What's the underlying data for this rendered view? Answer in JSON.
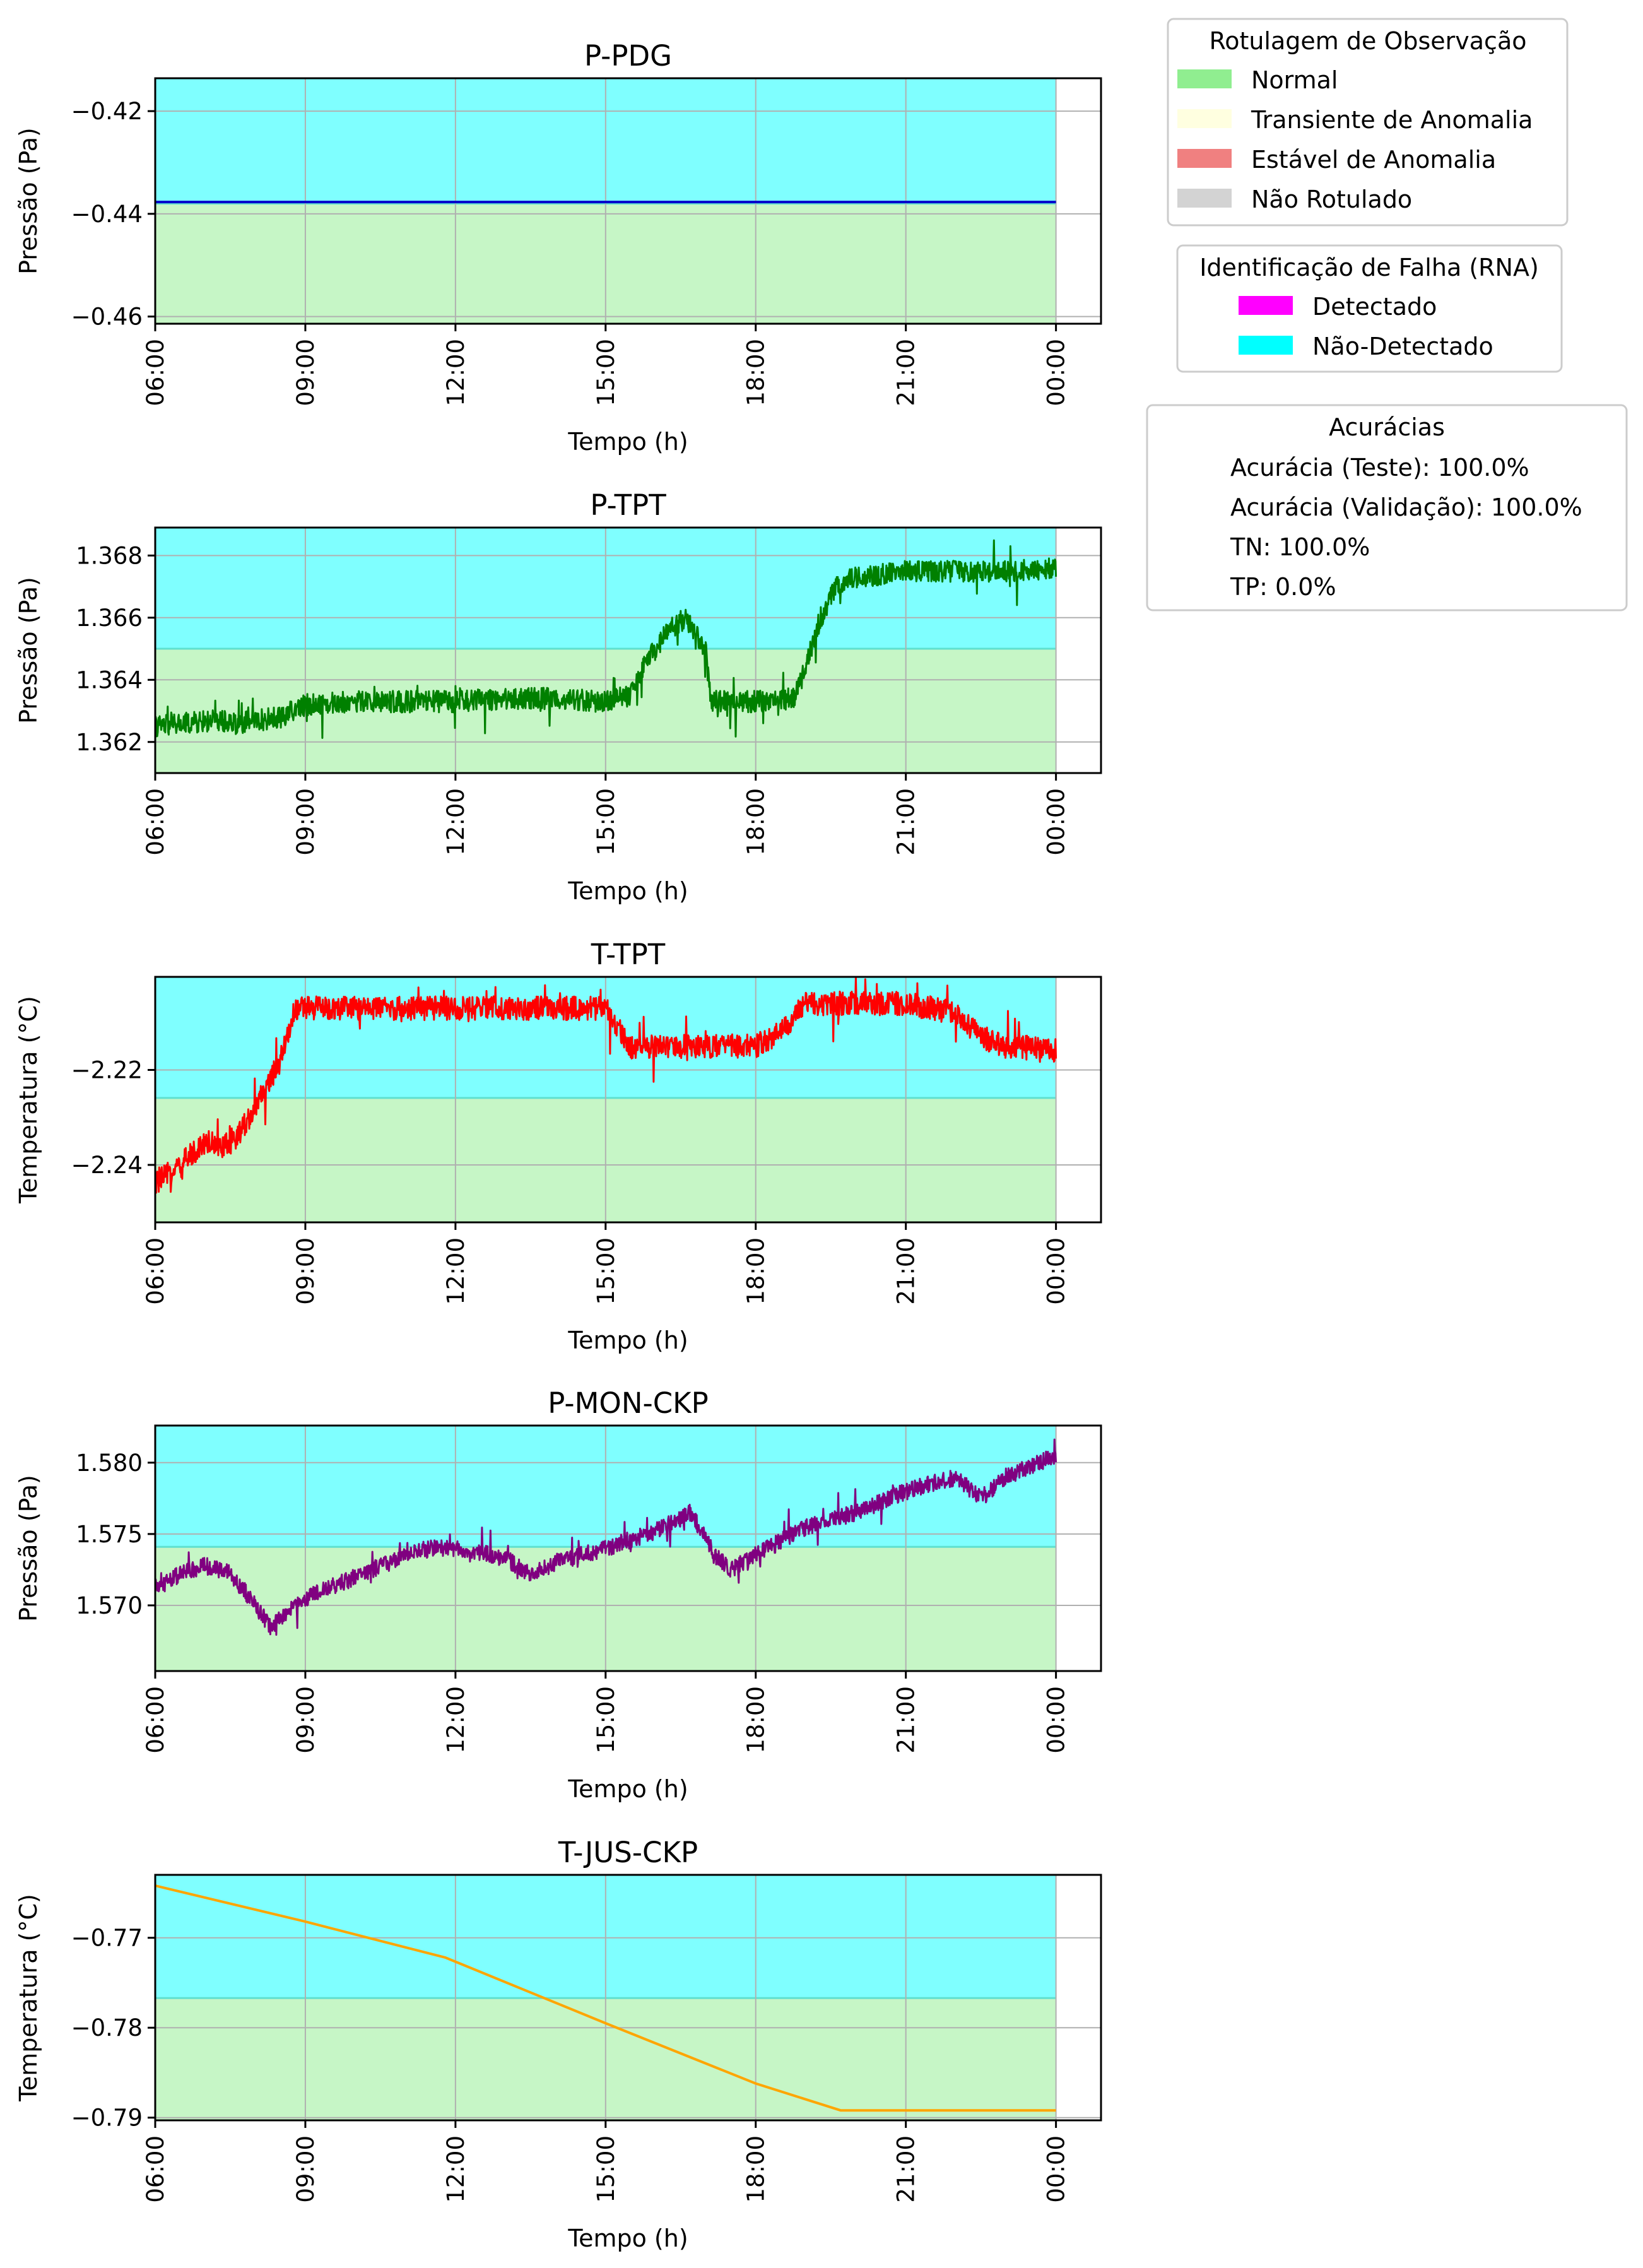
{
  "chart_data": [
    {
      "type": "line",
      "title": "P-PDG",
      "xlabel": "Tempo (h)",
      "ylabel": "Pressão (Pa)",
      "x_ticks": [
        "06:00",
        "09:00",
        "12:00",
        "15:00",
        "18:00",
        "21:00",
        "00:00"
      ],
      "y_ticks": [
        -0.42,
        -0.44,
        -0.46
      ],
      "y_tick_labels": [
        "−0.42",
        "−0.44",
        "−0.46"
      ],
      "xlim": [
        6,
        24.9
      ],
      "ylim": [
        -0.4614,
        -0.4136
      ],
      "grid": true,
      "threshold": -0.438,
      "band_below_threshold": "Normal",
      "band_above_threshold": "Não-Detectado",
      "series": [
        {
          "color": "#0000cc",
          "noise": 0,
          "x": [
            6,
            24
          ],
          "y": [
            -0.4377,
            -0.4377
          ]
        }
      ]
    },
    {
      "type": "line",
      "title": "P-TPT",
      "xlabel": "Tempo (h)",
      "ylabel": "Pressão (Pa)",
      "x_ticks": [
        "06:00",
        "09:00",
        "12:00",
        "15:00",
        "18:00",
        "21:00",
        "00:00"
      ],
      "y_ticks": [
        1.368,
        1.366,
        1.364,
        1.362
      ],
      "y_tick_labels": [
        "1.368",
        "1.366",
        "1.364",
        "1.362"
      ],
      "xlim": [
        6,
        24.9
      ],
      "ylim": [
        1.361,
        1.3689
      ],
      "grid": true,
      "threshold": 1.365,
      "band_below_threshold": "Normal",
      "band_above_threshold": "Não-Detectado",
      "series": [
        {
          "color": "#008000",
          "noise": 0.0007,
          "x": [
            6,
            7.3,
            7.6,
            8.5,
            9,
            10,
            11,
            12,
            13,
            14,
            15,
            15.5,
            15.8,
            16.2,
            16.6,
            17,
            17.1,
            18,
            18.8,
            19.0,
            19.3,
            19.6,
            20,
            21,
            22,
            23,
            24
          ],
          "y": [
            1.3625,
            1.3627,
            1.3626,
            1.3628,
            1.3632,
            1.3633,
            1.3633,
            1.3633,
            1.3634,
            1.3634,
            1.3633,
            1.3635,
            1.3645,
            1.3655,
            1.366,
            1.365,
            1.3633,
            1.3633,
            1.3634,
            1.3645,
            1.366,
            1.367,
            1.3673,
            1.3675,
            1.3675,
            1.3675,
            1.3676
          ]
        }
      ]
    },
    {
      "type": "line",
      "title": "T-TPT",
      "xlabel": "Tempo (h)",
      "ylabel": "Temperatura (°C)",
      "x_ticks": [
        "06:00",
        "09:00",
        "12:00",
        "15:00",
        "18:00",
        "21:00",
        "00:00"
      ],
      "y_ticks": [
        -2.22,
        -2.24
      ],
      "y_tick_labels": [
        "−2.22",
        "−2.24"
      ],
      "xlim": [
        6,
        24.9
      ],
      "ylim": [
        -2.2521,
        -2.2004
      ],
      "grid": true,
      "threshold": -2.2259,
      "band_below_threshold": "Normal",
      "band_above_threshold": "Não-Detectado",
      "series": [
        {
          "color": "#ff0000",
          "noise": 0.005,
          "x": [
            6,
            6.5,
            7,
            7.5,
            8,
            8.5,
            8.8,
            9.5,
            10.5,
            11.5,
            12.5,
            13.5,
            14.5,
            15,
            15.5,
            16,
            17,
            18,
            18.5,
            19,
            20,
            21,
            22,
            22.5,
            23,
            23.5,
            24
          ],
          "y": [
            -2.244,
            -2.24,
            -2.235,
            -2.236,
            -2.228,
            -2.218,
            -2.207,
            -2.207,
            -2.207,
            -2.207,
            -2.207,
            -2.207,
            -2.207,
            -2.207,
            -2.215,
            -2.215,
            -2.215,
            -2.215,
            -2.212,
            -2.206,
            -2.206,
            -2.206,
            -2.208,
            -2.213,
            -2.215,
            -2.215,
            -2.216
          ]
        }
      ]
    },
    {
      "type": "line",
      "title": "P-MON-CKP",
      "xlabel": "Tempo (h)",
      "ylabel": "Pressão (Pa)",
      "x_ticks": [
        "06:00",
        "09:00",
        "12:00",
        "15:00",
        "18:00",
        "21:00",
        "00:00"
      ],
      "y_ticks": [
        1.58,
        1.575,
        1.57
      ],
      "y_tick_labels": [
        "1.580",
        "1.575",
        "1.570"
      ],
      "xlim": [
        6,
        24.9
      ],
      "ylim": [
        1.5654,
        1.5826
      ],
      "grid": true,
      "threshold": 1.5741,
      "band_below_threshold": "Normal",
      "band_above_threshold": "Não-Detectado",
      "series": [
        {
          "color": "#800080",
          "noise": 0.0012,
          "x": [
            6,
            6.5,
            7,
            7.5,
            7.9,
            8.3,
            9,
            10,
            11,
            11.5,
            12,
            13,
            13.5,
            14,
            15,
            16,
            16.7,
            17.2,
            17.5,
            18,
            19,
            20,
            21,
            22,
            22.5,
            23,
            23.5,
            24
          ],
          "y": [
            1.5712,
            1.5722,
            1.5728,
            1.5722,
            1.5705,
            1.5685,
            1.5705,
            1.572,
            1.5735,
            1.574,
            1.574,
            1.5733,
            1.5722,
            1.573,
            1.574,
            1.5752,
            1.5765,
            1.5735,
            1.5725,
            1.5735,
            1.5755,
            1.5765,
            1.578,
            1.579,
            1.5775,
            1.579,
            1.5798,
            1.5805
          ]
        }
      ]
    },
    {
      "type": "line",
      "title": "T-JUS-CKP",
      "xlabel": "Tempo (h)",
      "ylabel": "Temperatura (°C)",
      "x_ticks": [
        "06:00",
        "09:00",
        "12:00",
        "15:00",
        "18:00",
        "21:00",
        "00:00"
      ],
      "y_ticks": [
        -0.77,
        -0.78,
        -0.79
      ],
      "y_tick_labels": [
        "−0.77",
        "−0.78",
        "−0.79"
      ],
      "xlim": [
        6,
        24.9
      ],
      "ylim": [
        -0.7903,
        -0.763
      ],
      "grid": true,
      "threshold": -0.7767,
      "band_below_threshold": "Normal",
      "band_above_threshold": "Não-Detectado",
      "series": [
        {
          "color": "#ffa500",
          "noise": 0,
          "x": [
            6,
            9,
            11.8,
            15,
            18,
            19.7,
            24
          ],
          "y": [
            -0.7642,
            -0.7682,
            -0.7722,
            -0.7795,
            -0.7862,
            -0.7892,
            -0.7892
          ]
        }
      ]
    }
  ],
  "legends": {
    "labels": {
      "title": "Rotulagem de Observação",
      "items": [
        {
          "label": "Normal",
          "color": "#90ee90"
        },
        {
          "label": "Transiente de Anomalia",
          "color": "#ffffe0"
        },
        {
          "label": "Estável de Anomalia",
          "color": "#f08080"
        },
        {
          "label": "Não Rotulado",
          "color": "#d3d3d3"
        }
      ]
    },
    "detection": {
      "title": "Identificação de Falha (RNA)",
      "items": [
        {
          "label": "Detectado",
          "color": "#ff00ff"
        },
        {
          "label": "Não-Detectado",
          "color": "#00ffff"
        }
      ]
    },
    "accuracy": {
      "title": "Acurácias",
      "items": [
        "Acurácia (Teste): 100.0%",
        "Acurácia (Validação): 100.0%",
        "TN: 100.0%",
        "TP: 0.0%"
      ]
    }
  }
}
